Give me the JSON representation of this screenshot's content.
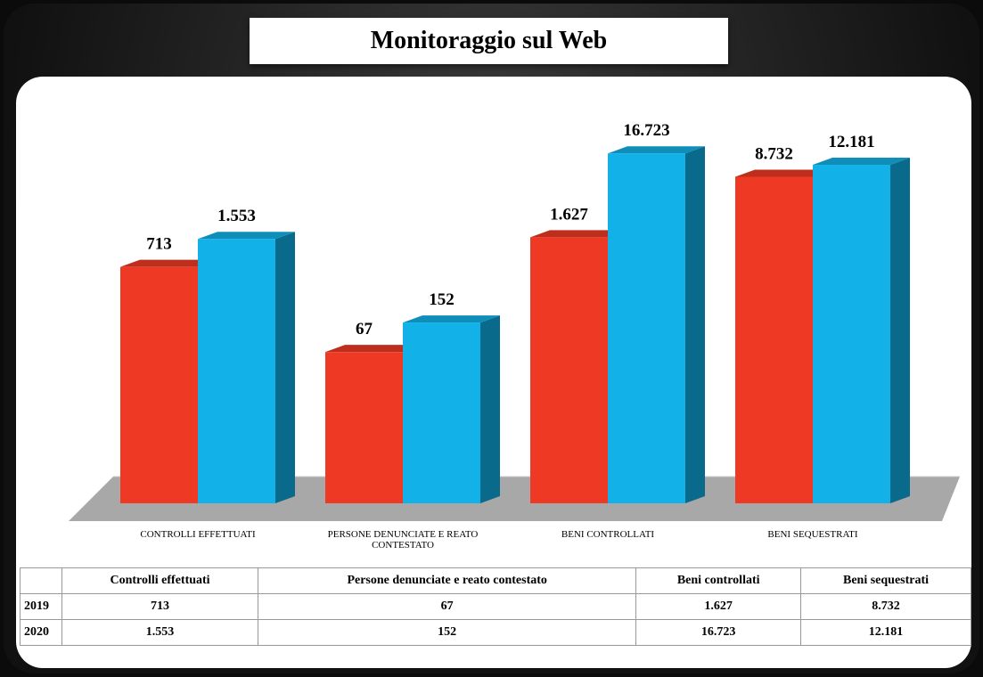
{
  "chart_data": {
    "type": "bar3d",
    "title": "Monitoraggio sul Web",
    "categories": [
      "CONTROLLI EFFETTUATI",
      "PERSONE DENUNCIATE E REATO CONTESTATO",
      "BENI CONTROLLATI",
      "BENI SEQUESTRATI"
    ],
    "series": [
      {
        "name": "2019",
        "color": "#ee3a24",
        "values": [
          713,
          67,
          1627,
          8732
        ],
        "value_labels": [
          "713",
          "67",
          "1.627",
          "8.732"
        ]
      },
      {
        "name": "2020",
        "color": "#12b2e8",
        "values": [
          1553,
          152,
          16723,
          12181
        ],
        "value_labels": [
          "1.553",
          "152",
          "16.723",
          "12.181"
        ]
      }
    ],
    "ylim": [
      1,
      100000
    ],
    "log_scale": true,
    "grid": false
  },
  "table": {
    "columns": [
      "Controlli effettuati",
      "Persone denunciate e reato contestato",
      "Beni controllati",
      "Beni sequestrati"
    ]
  }
}
